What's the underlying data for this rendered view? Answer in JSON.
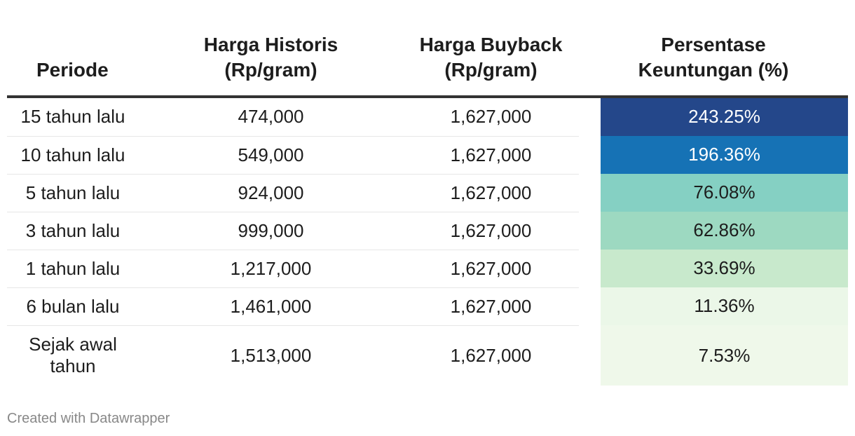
{
  "chart_data": {
    "type": "table",
    "columns": [
      "Periode",
      "Harga Historis\n(Rp/gram)",
      "Harga Buyback\n(Rp/gram)",
      "Persentase\nKeuntungan (%)"
    ],
    "rows": [
      {
        "periode": "15 tahun lalu",
        "historis": "474,000",
        "buyback": "1,627,000",
        "persentase": "243.25%",
        "value": 243.25,
        "bg": "#24478a",
        "fg": "#ffffff"
      },
      {
        "periode": "10 tahun lalu",
        "historis": "549,000",
        "buyback": "1,627,000",
        "persentase": "196.36%",
        "value": 196.36,
        "bg": "#1672b5",
        "fg": "#ffffff"
      },
      {
        "periode": "5 tahun lalu",
        "historis": "924,000",
        "buyback": "1,627,000",
        "persentase": "76.08%",
        "value": 76.08,
        "bg": "#85d0c3",
        "fg": "#1d1d1d"
      },
      {
        "periode": "3 tahun lalu",
        "historis": "999,000",
        "buyback": "1,627,000",
        "persentase": "62.86%",
        "value": 62.86,
        "bg": "#9dd9c1",
        "fg": "#1d1d1d"
      },
      {
        "periode": "1 tahun lalu",
        "historis": "1,217,000",
        "buyback": "1,627,000",
        "persentase": "33.69%",
        "value": 33.69,
        "bg": "#c8e9cc",
        "fg": "#1d1d1d"
      },
      {
        "periode": "6 bulan lalu",
        "historis": "1,461,000",
        "buyback": "1,627,000",
        "persentase": "11.36%",
        "value": 11.36,
        "bg": "#ebf7e8",
        "fg": "#1d1d1d"
      },
      {
        "periode": "Sejak awal tahun",
        "historis": "1,513,000",
        "buyback": "1,627,000",
        "persentase": "7.53%",
        "value": 7.53,
        "bg": "#eff8ea",
        "fg": "#1d1d1d"
      }
    ]
  },
  "footer": "Created with Datawrapper"
}
